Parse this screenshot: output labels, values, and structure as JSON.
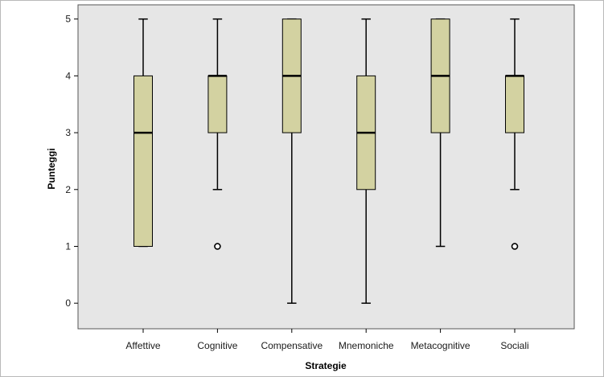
{
  "chart_data": {
    "type": "box",
    "title": "",
    "xlabel": "Strategie",
    "ylabel": "Punteggi",
    "ylim": [
      -0.45,
      5.25
    ],
    "yticks": [
      "0",
      "1",
      "2",
      "3",
      "4",
      "5"
    ],
    "grid": false,
    "legend": "none",
    "categories": [
      "Affettive",
      "Cognitive",
      "Compensative",
      "Mnemoniche",
      "Metacognitive",
      "Sociali"
    ],
    "boxes": [
      {
        "category": "Affettive",
        "min": 1,
        "q1": 1,
        "median": 3,
        "q3": 4,
        "max": 5,
        "outliers": []
      },
      {
        "category": "Cognitive",
        "min": 2,
        "q1": 3,
        "median": 4,
        "q3": 4,
        "max": 5,
        "outliers": [
          1
        ]
      },
      {
        "category": "Compensative",
        "min": 0,
        "q1": 3,
        "median": 4,
        "q3": 5,
        "max": 5,
        "outliers": []
      },
      {
        "category": "Mnemoniche",
        "min": 0,
        "q1": 2,
        "median": 3,
        "q3": 4,
        "max": 5,
        "outliers": []
      },
      {
        "category": "Metacognitive",
        "min": 1,
        "q1": 3,
        "median": 4,
        "q3": 5,
        "max": 5,
        "outliers": []
      },
      {
        "category": "Sociali",
        "min": 2,
        "q1": 3,
        "median": 4,
        "q3": 4,
        "max": 5,
        "outliers": [
          1
        ]
      }
    ],
    "colors": {
      "plot_background": "#e6e6e6",
      "box_fill": "#d3d2a1",
      "line": "#000000"
    }
  }
}
